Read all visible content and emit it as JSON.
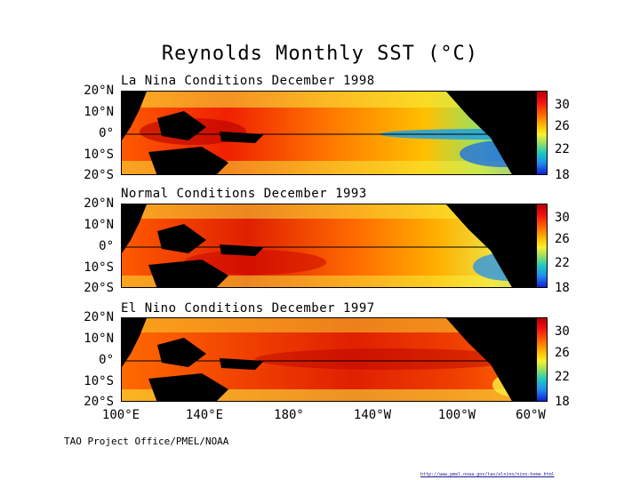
{
  "title": "Reynolds Monthly SST (°C)",
  "panels": [
    {
      "label": "La Nina Conditions December 1998",
      "type": "la-nina"
    },
    {
      "label": "Normal Conditions December 1993",
      "type": "normal"
    },
    {
      "label": "El Nino Conditions December 1997",
      "type": "el-nino"
    }
  ],
  "lat_labels": [
    "20°N",
    "10°N",
    "0°",
    "10°S",
    "20°S"
  ],
  "colorbar_labels": [
    "30",
    "26",
    "22",
    "18"
  ],
  "lon_labels": [
    "100°E",
    "140°E",
    "180°",
    "140°W",
    "100°W",
    "60°W"
  ],
  "footer": "TAO Project Office/PMEL/NOAA",
  "url": "http://www.pmel.noaa.gov/tao/elnino/nino-home.html",
  "colors": {
    "warm": "#e02000",
    "hot": "#b80000",
    "cool": "#20c8c0",
    "cold": "#1020d0",
    "land": "#000000"
  }
}
